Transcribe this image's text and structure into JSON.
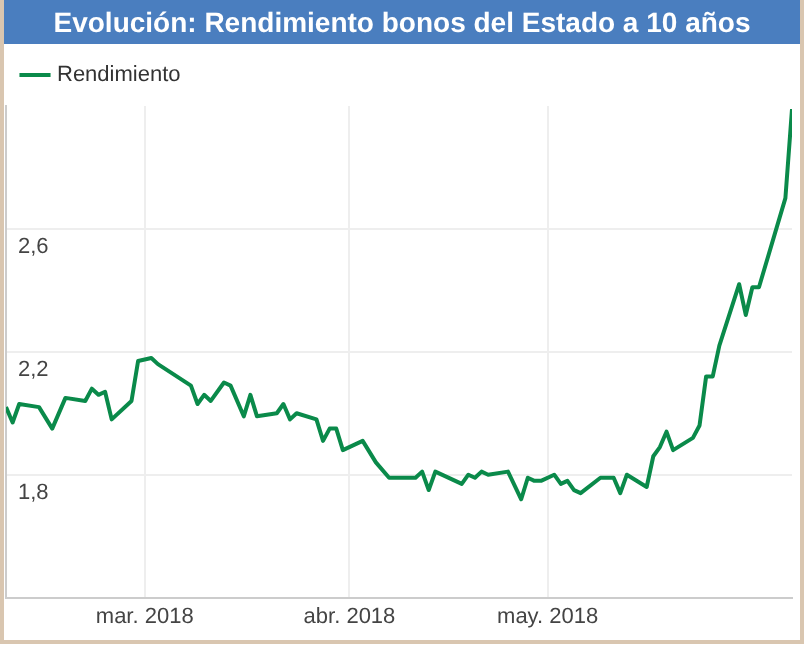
{
  "chart_data": {
    "type": "line",
    "title": "Evolución: Rendimiento bonos del Estado a 10 años",
    "x": [
      "2018-02-08",
      "2018-02-09",
      "2018-02-10",
      "2018-02-13",
      "2018-02-15",
      "2018-02-17",
      "2018-02-20",
      "2018-02-21",
      "2018-02-22",
      "2018-02-23",
      "2018-02-24",
      "2018-02-27",
      "2018-02-28",
      "2018-03-02",
      "2018-03-03",
      "2018-03-08",
      "2018-03-09",
      "2018-03-10",
      "2018-03-11",
      "2018-03-13",
      "2018-03-14",
      "2018-03-16",
      "2018-03-17",
      "2018-03-18",
      "2018-03-21",
      "2018-03-22",
      "2018-03-23",
      "2018-03-24",
      "2018-03-27",
      "2018-03-28",
      "2018-03-29",
      "2018-03-30",
      "2018-03-31",
      "2018-04-03",
      "2018-04-05",
      "2018-04-07",
      "2018-04-11",
      "2018-04-12",
      "2018-04-13",
      "2018-04-14",
      "2018-04-18",
      "2018-04-19",
      "2018-04-20",
      "2018-04-21",
      "2018-04-22",
      "2018-04-25",
      "2018-04-27",
      "2018-04-28",
      "2018-04-29",
      "2018-04-30",
      "2018-05-02",
      "2018-05-03",
      "2018-05-04",
      "2018-05-05",
      "2018-05-06",
      "2018-05-09",
      "2018-05-11",
      "2018-05-12",
      "2018-05-13",
      "2018-05-16",
      "2018-05-17",
      "2018-05-18",
      "2018-05-19",
      "2018-05-20",
      "2018-05-23",
      "2018-05-24",
      "2018-05-25",
      "2018-05-26",
      "2018-05-27",
      "2018-05-30",
      "2018-05-31",
      "2018-06-01",
      "2018-06-02",
      "2018-06-06",
      "2018-06-07"
    ],
    "series": [
      {
        "name": "Rendimiento",
        "color": "#0a8a4a",
        "values": [
          2.02,
          1.97,
          2.03,
          2.02,
          1.95,
          2.05,
          2.04,
          2.08,
          2.06,
          2.07,
          1.98,
          2.04,
          2.17,
          2.18,
          2.16,
          2.09,
          2.03,
          2.06,
          2.04,
          2.1,
          2.09,
          1.99,
          2.06,
          1.99,
          2.0,
          2.03,
          1.98,
          2.0,
          1.98,
          1.91,
          1.95,
          1.95,
          1.88,
          1.91,
          1.84,
          1.79,
          1.79,
          1.81,
          1.75,
          1.81,
          1.77,
          1.8,
          1.79,
          1.81,
          1.8,
          1.81,
          1.72,
          1.79,
          1.78,
          1.78,
          1.8,
          1.77,
          1.78,
          1.75,
          1.74,
          1.79,
          1.79,
          1.74,
          1.8,
          1.76,
          1.86,
          1.89,
          1.94,
          1.88,
          1.92,
          1.96,
          2.12,
          2.12,
          2.22,
          2.42,
          2.32,
          2.41,
          2.41,
          2.7,
          2.99
        ]
      }
    ],
    "xlim": [
      "2018-02-08",
      "2018-06-07"
    ],
    "xticks": [
      {
        "value": "2018-03-01",
        "label": "mar. 2018"
      },
      {
        "value": "2018-04-01",
        "label": "abr. 2018"
      },
      {
        "value": "2018-05-01",
        "label": "may. 2018"
      }
    ],
    "ylim": [
      1.4,
      3.0
    ],
    "yticks": [
      {
        "value": 1.8,
        "label": "1,8"
      },
      {
        "value": 2.2,
        "label": "2,2"
      },
      {
        "value": 2.6,
        "label": "2,6"
      }
    ],
    "grid": true,
    "legend": "top left",
    "marker": "none",
    "line_style": "solid"
  }
}
